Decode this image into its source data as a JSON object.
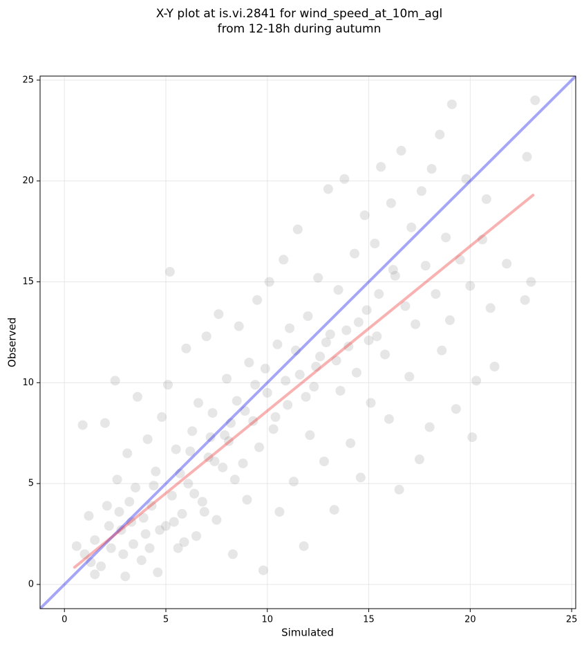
{
  "chart_data": {
    "type": "scatter",
    "title": [
      "X-Y plot at is.vi.2841 for wind_speed_at_10m_agl",
      "from 12-18h during autumn"
    ],
    "xlabel": "Simulated",
    "ylabel": "Observed",
    "xlim": [
      -1.2,
      25.2
    ],
    "ylim": [
      -1.2,
      25.2
    ],
    "xticks": [
      0,
      5,
      10,
      15,
      20,
      25
    ],
    "yticks": [
      0,
      5,
      10,
      15,
      20,
      25
    ],
    "grid": true,
    "color": "#808080",
    "x": [
      0.9,
      1.0,
      1.2,
      1.5,
      1.8,
      2.0,
      2.1,
      2.3,
      2.5,
      2.6,
      2.8,
      3.0,
      3.1,
      3.3,
      3.5,
      3.6,
      3.8,
      4.0,
      4.1,
      4.3,
      4.5,
      4.6,
      4.8,
      5.0,
      5.1,
      5.2,
      5.3,
      5.5,
      5.6,
      5.8,
      6.0,
      6.1,
      6.3,
      6.5,
      6.6,
      6.8,
      7.0,
      7.1,
      7.3,
      7.5,
      7.6,
      7.8,
      8.0,
      8.1,
      8.3,
      8.5,
      8.6,
      8.8,
      9.0,
      9.1,
      9.3,
      9.5,
      9.6,
      9.8,
      10.0,
      10.1,
      10.3,
      10.5,
      10.6,
      10.8,
      11.0,
      11.1,
      11.3,
      11.5,
      11.6,
      11.8,
      12.0,
      12.1,
      12.3,
      12.5,
      12.6,
      12.8,
      13.0,
      13.1,
      13.3,
      13.5,
      13.6,
      13.8,
      14.0,
      14.1,
      14.3,
      14.5,
      14.6,
      14.8,
      15.0,
      15.1,
      15.3,
      15.5,
      15.6,
      15.8,
      16.0,
      16.1,
      16.3,
      16.5,
      16.6,
      16.8,
      17.0,
      17.1,
      17.3,
      17.5,
      17.6,
      17.8,
      18.0,
      18.1,
      18.3,
      18.5,
      18.6,
      18.8,
      19.0,
      19.1,
      19.3,
      19.5,
      19.8,
      20.0,
      20.1,
      20.3,
      20.6,
      20.8,
      21.0,
      21.2,
      21.8,
      22.8,
      23.0,
      23.2,
      22.7,
      1.5,
      2.2,
      2.9,
      3.4,
      3.9,
      4.2,
      4.7,
      5.4,
      5.9,
      6.4,
      6.9,
      7.4,
      7.9,
      8.4,
      8.9,
      9.4,
      9.9,
      10.4,
      10.9,
      11.4,
      11.9,
      12.4,
      12.9,
      13.4,
      13.9,
      14.4,
      14.9,
      15.4,
      16.2,
      3.2,
      4.4,
      5.7,
      6.2,
      7.2,
      8.2,
      2.7,
      1.3,
      0.6
    ],
    "values": [
      7.9,
      1.5,
      3.4,
      2.2,
      0.9,
      8.0,
      3.9,
      1.8,
      10.1,
      5.2,
      2.7,
      0.4,
      6.5,
      3.1,
      4.8,
      9.3,
      1.2,
      2.5,
      7.2,
      3.9,
      5.6,
      0.6,
      8.3,
      2.9,
      9.9,
      15.5,
      4.4,
      6.7,
      1.8,
      3.5,
      11.7,
      5.0,
      7.6,
      2.4,
      9.0,
      4.1,
      12.3,
      6.3,
      8.5,
      3.2,
      13.4,
      5.8,
      10.2,
      7.1,
      1.5,
      9.1,
      12.8,
      6.0,
      4.2,
      11.0,
      8.1,
      14.1,
      6.8,
      0.7,
      9.5,
      15.0,
      7.7,
      11.9,
      3.6,
      16.1,
      8.9,
      12.7,
      5.1,
      17.6,
      10.4,
      1.9,
      13.3,
      7.4,
      9.8,
      15.2,
      11.3,
      6.1,
      19.6,
      12.4,
      3.7,
      14.6,
      9.6,
      20.1,
      11.8,
      7.0,
      16.4,
      13.0,
      5.3,
      18.3,
      12.1,
      9.0,
      16.9,
      14.4,
      20.7,
      11.4,
      8.2,
      18.9,
      15.3,
      4.7,
      21.5,
      13.8,
      10.3,
      17.7,
      12.9,
      6.2,
      19.5,
      15.8,
      7.8,
      20.6,
      14.4,
      22.3,
      11.6,
      17.2,
      13.1,
      23.8,
      8.7,
      16.1,
      20.1,
      14.8,
      7.3,
      10.1,
      17.1,
      19.1,
      13.7,
      10.8,
      15.9,
      21.2,
      15.0,
      24.0,
      14.1,
      0.5,
      2.9,
      1.5,
      2.0,
      3.3,
      1.8,
      2.7,
      3.1,
      2.1,
      4.5,
      3.6,
      6.1,
      7.4,
      5.2,
      8.6,
      9.9,
      10.7,
      8.3,
      10.1,
      11.6,
      9.3,
      10.8,
      12.0,
      11.1,
      12.6,
      10.5,
      13.6,
      12.3,
      15.6,
      4.1,
      4.9,
      5.5,
      6.6,
      7.3,
      8.0,
      3.6,
      1.1,
      1.9
    ],
    "lines": [
      {
        "color": "#0000ee",
        "x": [
          -1.2,
          25.2
        ],
        "values": [
          -1.2,
          25.2
        ]
      },
      {
        "color": "#ee2222",
        "x": [
          0.5,
          23.1
        ],
        "values": [
          0.85,
          19.3
        ]
      }
    ]
  }
}
